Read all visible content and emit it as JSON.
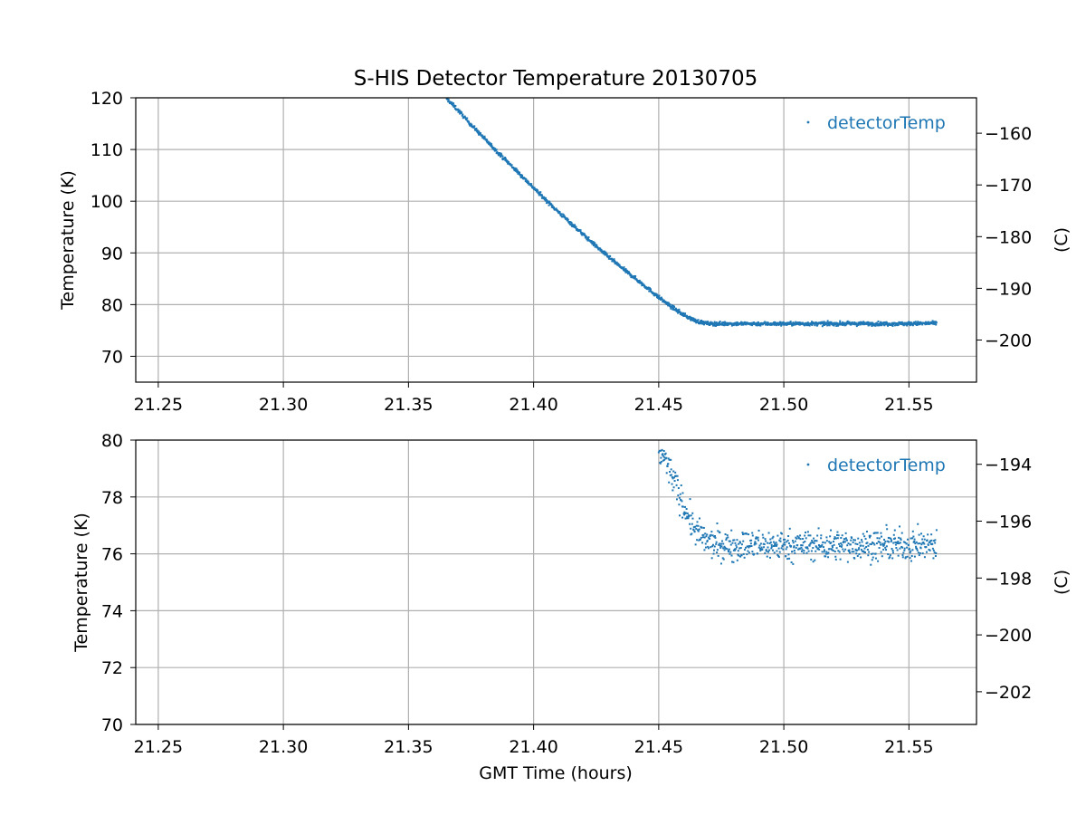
{
  "figure": {
    "title": "S-HIS Detector Temperature 20130705",
    "xlabel": "GMT Time (hours)"
  },
  "colors": {
    "series": "#1f77b4",
    "grid": "#b0b0b0",
    "axis": "#000000"
  },
  "chart_data": [
    {
      "type": "scatter",
      "title": "S-HIS Detector Temperature 20130705",
      "xlabel": "",
      "ylabel": "Temperature (K)",
      "ylabel_right": "(C)",
      "xlim": [
        21.241,
        21.577
      ],
      "ylim": [
        65,
        120
      ],
      "ylim_right": [
        -208.15,
        -153.15
      ],
      "xticks": [
        "21.25",
        "21.30",
        "21.35",
        "21.40",
        "21.45",
        "21.50",
        "21.55"
      ],
      "yticks": [
        "70",
        "80",
        "90",
        "100",
        "110",
        "120"
      ],
      "yticks_right": [
        "−160",
        "−170",
        "−180",
        "−190",
        "−200"
      ],
      "grid": true,
      "legend": {
        "entries": [
          "detectorTemp"
        ],
        "placement": "top-right"
      },
      "series": [
        {
          "name": "detectorTemp",
          "marker": "point",
          "x": [
            21.365,
            21.37,
            21.375,
            21.38,
            21.385,
            21.39,
            21.395,
            21.4,
            21.405,
            21.41,
            21.415,
            21.42,
            21.425,
            21.43,
            21.435,
            21.44,
            21.445,
            21.45,
            21.455,
            21.46,
            21.465,
            21.47,
            21.48,
            21.49,
            21.5,
            21.51,
            21.52,
            21.53,
            21.54,
            21.55,
            21.561
          ],
          "y": [
            120,
            117.5,
            114.8,
            112.3,
            109.8,
            107.4,
            105.0,
            102.6,
            100.2,
            97.9,
            95.7,
            93.5,
            91.3,
            89.2,
            87.2,
            85.3,
            83.4,
            81.4,
            79.6,
            78.0,
            76.8,
            76.3,
            76.3,
            76.3,
            76.3,
            76.3,
            76.3,
            76.3,
            76.3,
            76.3,
            76.4
          ]
        }
      ]
    },
    {
      "type": "scatter",
      "xlabel": "GMT Time (hours)",
      "ylabel": "Temperature (K)",
      "ylabel_right": "(C)",
      "xlim": [
        21.241,
        21.577
      ],
      "ylim": [
        70,
        80
      ],
      "ylim_right": [
        -203.15,
        -193.15
      ],
      "xticks": [
        "21.25",
        "21.30",
        "21.35",
        "21.40",
        "21.45",
        "21.50",
        "21.55"
      ],
      "yticks": [
        "70",
        "72",
        "74",
        "76",
        "78",
        "80"
      ],
      "yticks_right": [
        "−194",
        "−196",
        "−198",
        "−200",
        "−202"
      ],
      "grid": true,
      "legend": {
        "entries": [
          "detectorTemp"
        ],
        "placement": "top-right"
      },
      "series": [
        {
          "name": "detectorTemp",
          "marker": "point",
          "x": [
            21.45,
            21.452,
            21.454,
            21.456,
            21.458,
            21.46,
            21.462,
            21.464,
            21.466,
            21.468,
            21.47,
            21.475,
            21.48,
            21.49,
            21.5,
            21.51,
            21.52,
            21.53,
            21.54,
            21.55,
            21.561
          ],
          "y": [
            79.6,
            79.4,
            79.0,
            78.6,
            78.1,
            77.7,
            77.3,
            76.9,
            76.7,
            76.5,
            76.4,
            76.3,
            76.3,
            76.3,
            76.3,
            76.3,
            76.3,
            76.3,
            76.3,
            76.3,
            76.3
          ],
          "scatter_spread_K": 0.5
        }
      ]
    }
  ]
}
